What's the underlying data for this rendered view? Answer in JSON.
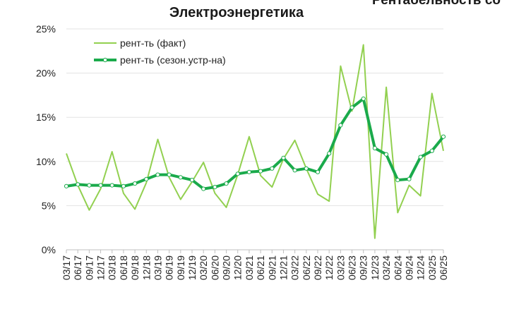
{
  "chart_data": {
    "type": "line",
    "title": "Электроэнергетика",
    "clipped_title": "Рентабельность со",
    "x": [
      "03/17",
      "06/17",
      "09/17",
      "12/17",
      "03/18",
      "06/18",
      "09/18",
      "12/18",
      "03/19",
      "06/19",
      "09/19",
      "12/19",
      "03/20",
      "06/20",
      "09/20",
      "12/20",
      "03/21",
      "06/21",
      "09/21",
      "12/21",
      "03/22",
      "06/22",
      "09/22",
      "12/22",
      "03/23",
      "06/23",
      "09/23",
      "12/23",
      "03/24",
      "06/24",
      "09/24",
      "12/24",
      "03/25",
      "06/25"
    ],
    "series": [
      {
        "name": "рент-ть (факт)",
        "color": "#92d050",
        "values": [
          10.9,
          7.3,
          4.5,
          6.9,
          11.1,
          6.4,
          4.6,
          7.6,
          12.5,
          8.2,
          5.7,
          7.7,
          9.9,
          6.4,
          4.8,
          8.5,
          12.8,
          8.4,
          7.1,
          10.3,
          12.4,
          9.2,
          6.3,
          5.5,
          20.8,
          15.7,
          23.2,
          1.3,
          18.4,
          4.2,
          7.3,
          6.1,
          17.7,
          11.2
        ]
      },
      {
        "name": "рент-ть (сезон.устр-на)",
        "color": "#1aaa4b",
        "values": [
          7.2,
          7.4,
          7.3,
          7.3,
          7.3,
          7.2,
          7.5,
          8.0,
          8.5,
          8.5,
          8.2,
          7.9,
          6.9,
          7.1,
          7.5,
          8.6,
          8.8,
          8.9,
          9.2,
          10.4,
          9.0,
          9.2,
          8.8,
          10.9,
          14.1,
          16.1,
          17.1,
          11.5,
          10.8,
          7.9,
          8.0,
          10.5,
          11.2,
          12.8
        ]
      }
    ],
    "y_ticks": [
      "0%",
      "5%",
      "10%",
      "15%",
      "20%",
      "25%"
    ],
    "ylim": [
      0,
      25
    ],
    "grid": "horizontal",
    "legend": "top-left"
  }
}
